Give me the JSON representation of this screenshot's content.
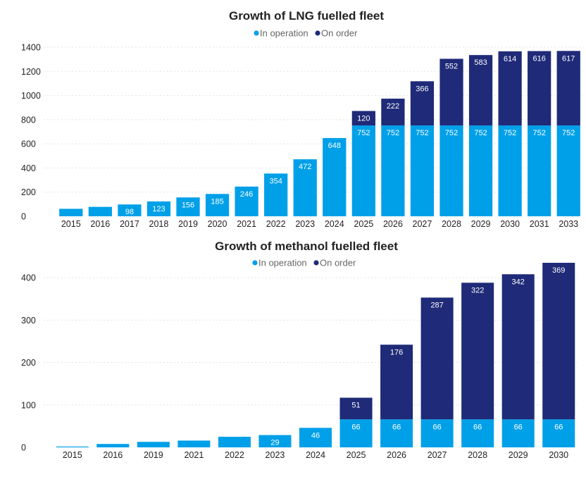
{
  "colors": {
    "in_operation": "#00a0e9",
    "on_order": "#1f2a78"
  },
  "chart_data": [
    {
      "type": "bar",
      "stacked": true,
      "title": "Growth of LNG fuelled fleet",
      "legend": {
        "placement": "top-center",
        "entries": [
          "In operation",
          "On order"
        ]
      },
      "categories": [
        "2015",
        "2016",
        "2017",
        "2018",
        "2019",
        "2020",
        "2021",
        "2022",
        "2023",
        "2024",
        "2025",
        "2026",
        "2027",
        "2028",
        "2029",
        "2030",
        "2031",
        "2033"
      ],
      "series": [
        {
          "name": "In operation",
          "color": "#00a0e9",
          "values": [
            62,
            78,
            98,
            123,
            156,
            185,
            246,
            354,
            472,
            648,
            752,
            752,
            752,
            752,
            752,
            752,
            752,
            752
          ],
          "labels": [
            "",
            "",
            "98",
            "123",
            "156",
            "185",
            "246",
            "354",
            "472",
            "648",
            "752",
            "752",
            "752",
            "752",
            "752",
            "752",
            "752",
            "752"
          ]
        },
        {
          "name": "On order",
          "color": "#1f2a78",
          "values": [
            0,
            0,
            0,
            0,
            0,
            0,
            0,
            0,
            0,
            0,
            120,
            222,
            366,
            552,
            583,
            614,
            616,
            617
          ],
          "labels": [
            "",
            "",
            "",
            "",
            "",
            "",
            "",
            "",
            "",
            "",
            "120",
            "222",
            "366",
            "552",
            "583",
            "614",
            "616",
            "617"
          ]
        }
      ],
      "ylim": [
        0,
        1400
      ],
      "yticks": [
        0,
        200,
        400,
        600,
        800,
        1000,
        1200,
        1400
      ],
      "grid": true
    },
    {
      "type": "bar",
      "stacked": true,
      "title": "Growth of methanol fuelled fleet",
      "legend": {
        "placement": "top-center",
        "entries": [
          "In operation",
          "On order"
        ]
      },
      "categories": [
        "2015",
        "2016",
        "2019",
        "2021",
        "2022",
        "2023",
        "2024",
        "2025",
        "2026",
        "2027",
        "2028",
        "2029",
        "2030"
      ],
      "series": [
        {
          "name": "In operation",
          "color": "#00a0e9",
          "values": [
            2,
            8,
            13,
            16,
            25,
            29,
            46,
            66,
            66,
            66,
            66,
            66,
            66
          ],
          "labels": [
            "",
            "",
            "",
            "",
            "",
            "29",
            "46",
            "66",
            "66",
            "66",
            "66",
            "66",
            "66"
          ]
        },
        {
          "name": "On order",
          "color": "#1f2a78",
          "values": [
            0,
            0,
            0,
            0,
            0,
            0,
            0,
            51,
            176,
            287,
            322,
            342,
            369
          ],
          "labels": [
            "",
            "",
            "",
            "",
            "",
            "",
            "",
            "51",
            "176",
            "287",
            "322",
            "342",
            "369"
          ]
        }
      ],
      "ylim": [
        0,
        440
      ],
      "yticks": [
        0,
        100,
        200,
        300,
        400
      ],
      "grid": true
    }
  ]
}
